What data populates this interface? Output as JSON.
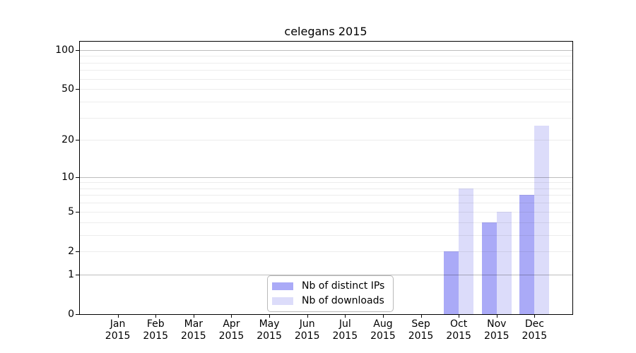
{
  "figure": {
    "background": "#ffffff"
  },
  "chart_data": {
    "type": "bar",
    "title": "celegans 2015",
    "categories": [
      "Jan 2015",
      "Feb 2015",
      "Mar 2015",
      "Apr 2015",
      "May 2015",
      "Jun 2015",
      "Jul 2015",
      "Aug 2015",
      "Sep 2015",
      "Oct 2015",
      "Nov 2015",
      "Dec 2015"
    ],
    "series": [
      {
        "name": "Nb of distinct IPs",
        "color": "#aaaaf7",
        "values": [
          0,
          0,
          0,
          0,
          0,
          0,
          0,
          0,
          0,
          2,
          4,
          7
        ]
      },
      {
        "name": "Nb of downloads",
        "color": "#dcdcfa",
        "values": [
          0,
          0,
          0,
          0,
          0,
          0,
          0,
          0,
          0,
          8,
          5,
          26
        ]
      }
    ],
    "xlabel": "",
    "ylabel": "",
    "yscale": "log1p",
    "y_ticks": [
      0,
      1,
      2,
      5,
      10,
      20,
      50,
      100
    ],
    "y_minor_gridlines": [
      2,
      3,
      4,
      5,
      6,
      7,
      8,
      9,
      20,
      30,
      40,
      50,
      60,
      70,
      80,
      90
    ],
    "y_major_gridlines": [
      1,
      10,
      100
    ],
    "ylim": [
      0,
      115
    ],
    "grid": "horizontal",
    "grid_over_bars": true,
    "legend_position": "lower center"
  }
}
